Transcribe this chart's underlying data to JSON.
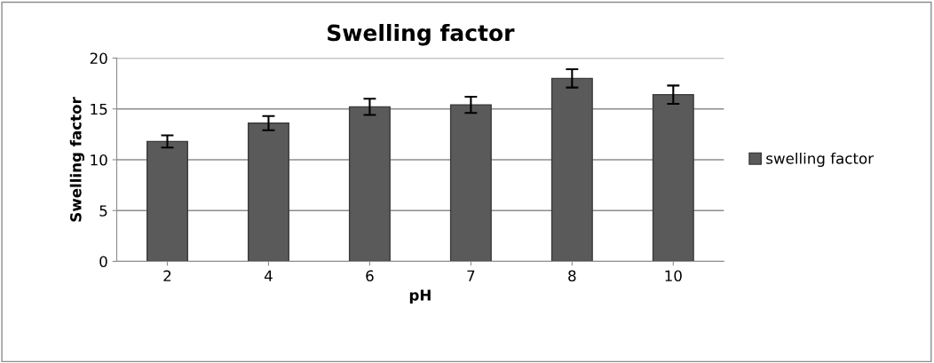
{
  "chart_data": {
    "type": "bar",
    "title": "Swelling factor",
    "xlabel": "pH",
    "ylabel": "Swelling factor",
    "categories": [
      "2",
      "4",
      "6",
      "7",
      "8",
      "10"
    ],
    "series": [
      {
        "name": "swelling factor",
        "color": "#5a5a5a",
        "values": [
          11.8,
          13.6,
          15.2,
          15.4,
          18.0,
          16.4
        ],
        "errors": [
          0.6,
          0.7,
          0.8,
          0.8,
          0.9,
          0.9
        ]
      }
    ],
    "ylim": [
      0,
      20
    ],
    "yticks": [
      0,
      5,
      10,
      15,
      20
    ],
    "grid": "y",
    "legend": "right"
  }
}
